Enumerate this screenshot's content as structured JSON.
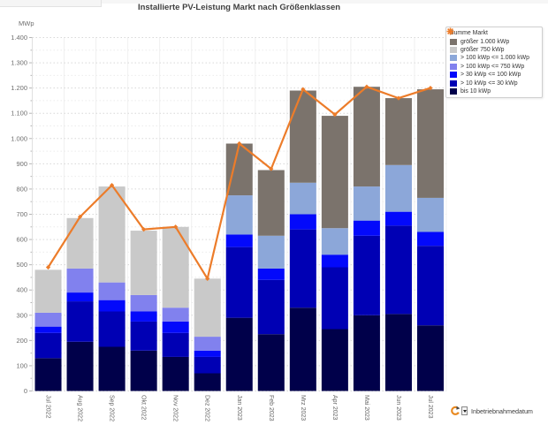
{
  "chart": {
    "title": "Installierte PV-Leistung Markt nach Größenklassen",
    "y_axis_unit": "MWp"
  },
  "chart_data": {
    "type": "bar",
    "stacked": true,
    "title": "Installierte PV-Leistung Markt nach Größenklassen",
    "ylabel": "MWp",
    "ylim": [
      0,
      1400
    ],
    "y_major_step": 100,
    "y_minor_step": 50,
    "grid": "dashed-horizontal",
    "legend_position": "top-right",
    "y_tick_labels": [
      "0",
      "100",
      "200",
      "300",
      "400",
      "500",
      "600",
      "700",
      "800",
      "900",
      "1.000",
      "1.100",
      "1.200",
      "1.300",
      "1.400"
    ],
    "categories": [
      "Jul 2022",
      "Aug 2022",
      "Sep 2022",
      "Okt 2022",
      "Nov 2022",
      "Dez 2022",
      "Jan 2023",
      "Feb 2023",
      "Mrz 2023",
      "Apr 2023",
      "Mai 2023",
      "Jun 2023",
      "Jul 2023"
    ],
    "series": [
      {
        "name": "bis 10 kWp",
        "color": "#00004a",
        "values": [
          130,
          195,
          175,
          160,
          135,
          70,
          290,
          225,
          330,
          245,
          300,
          305,
          260
        ]
      },
      {
        "name": "> 10 kWp <= 30 kWp",
        "color": "#0000b4",
        "values": [
          100,
          160,
          140,
          115,
          95,
          65,
          280,
          215,
          310,
          245,
          315,
          350,
          315
        ]
      },
      {
        "name": "> 30 kWp <= 100 kWp",
        "color": "#0309fb",
        "values": [
          25,
          35,
          45,
          40,
          45,
          25,
          50,
          45,
          60,
          50,
          60,
          55,
          55
        ]
      },
      {
        "name": "> 100 kWp <= 750 kWp",
        "color": "#8181ee",
        "values": [
          55,
          95,
          70,
          65,
          55,
          55,
          0,
          0,
          0,
          0,
          0,
          0,
          0
        ]
      },
      {
        "name": "> 100 kWp <= 1.000 kWp",
        "color": "#8ca7d9",
        "values": [
          0,
          0,
          0,
          0,
          0,
          0,
          155,
          130,
          125,
          105,
          135,
          185,
          135
        ]
      },
      {
        "name": "größer 750 kWp",
        "color": "#c9c9c9",
        "values": [
          170,
          200,
          380,
          255,
          320,
          230,
          0,
          0,
          0,
          0,
          0,
          0,
          0
        ]
      },
      {
        "name": "größer 1.000 kWp",
        "color": "#7b736c",
        "values": [
          0,
          0,
          0,
          0,
          0,
          0,
          205,
          260,
          365,
          445,
          395,
          265,
          430
        ]
      }
    ],
    "line_series": {
      "name": "Summe Markt",
      "color": "#ec7c2a",
      "values": [
        490,
        690,
        815,
        640,
        650,
        445,
        980,
        880,
        1195,
        1095,
        1205,
        1160,
        1200
      ]
    },
    "legend": [
      {
        "name": "Summe Markt",
        "type": "line",
        "color": "#ec7c2a"
      },
      {
        "name": "größer 1.000 kWp",
        "type": "box",
        "color": "#7b736c"
      },
      {
        "name": "größer 750 kWp",
        "type": "box",
        "color": "#c9c9c9"
      },
      {
        "name": "> 100 kWp <= 1.000 kWp",
        "type": "box",
        "color": "#8ca7d9"
      },
      {
        "name": "> 100 kWp <= 750 kWp",
        "type": "box",
        "color": "#8181ee"
      },
      {
        "name": "> 30 kWp <= 100 kWp",
        "type": "box",
        "color": "#0309fb"
      },
      {
        "name": "> 10 kWp <= 30 kWp",
        "type": "box",
        "color": "#0000b4"
      },
      {
        "name": "bis 10 kWp",
        "type": "box",
        "color": "#00004a"
      }
    ]
  },
  "footer": {
    "label": "Inbetriebnahmedatum",
    "icon": "cycle-group-icon"
  }
}
